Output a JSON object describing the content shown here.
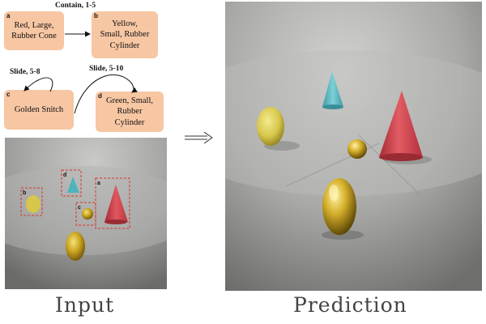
{
  "graph": {
    "nodes": [
      {
        "tag": "a",
        "text": "Red, Large,\nRubber Cone"
      },
      {
        "tag": "b",
        "text": "Yellow,\nSmall, Rubber\nCylinder"
      },
      {
        "tag": "c",
        "text": "Golden Snitch"
      },
      {
        "tag": "d",
        "text": "Green, Small,\nRubber\nCylinder"
      }
    ],
    "edges": [
      {
        "label": "Contain, 1-5"
      },
      {
        "label": "Slide, 5-8"
      },
      {
        "label": "Slide, 5-10"
      }
    ]
  },
  "input_scene": {
    "boxes": [
      {
        "tag": "a"
      },
      {
        "tag": "b"
      },
      {
        "tag": "c"
      },
      {
        "tag": "d"
      }
    ]
  },
  "captions": {
    "input": "Input",
    "prediction": "Prediction"
  },
  "colors": {
    "node_fill": "#f7c6a3",
    "bbox_stroke": "#d9342b",
    "cone_red": "#cf3f48",
    "cone_cyan": "#4fb3bd",
    "gold": "#c9a31f",
    "yellow": "#d6c64a"
  }
}
